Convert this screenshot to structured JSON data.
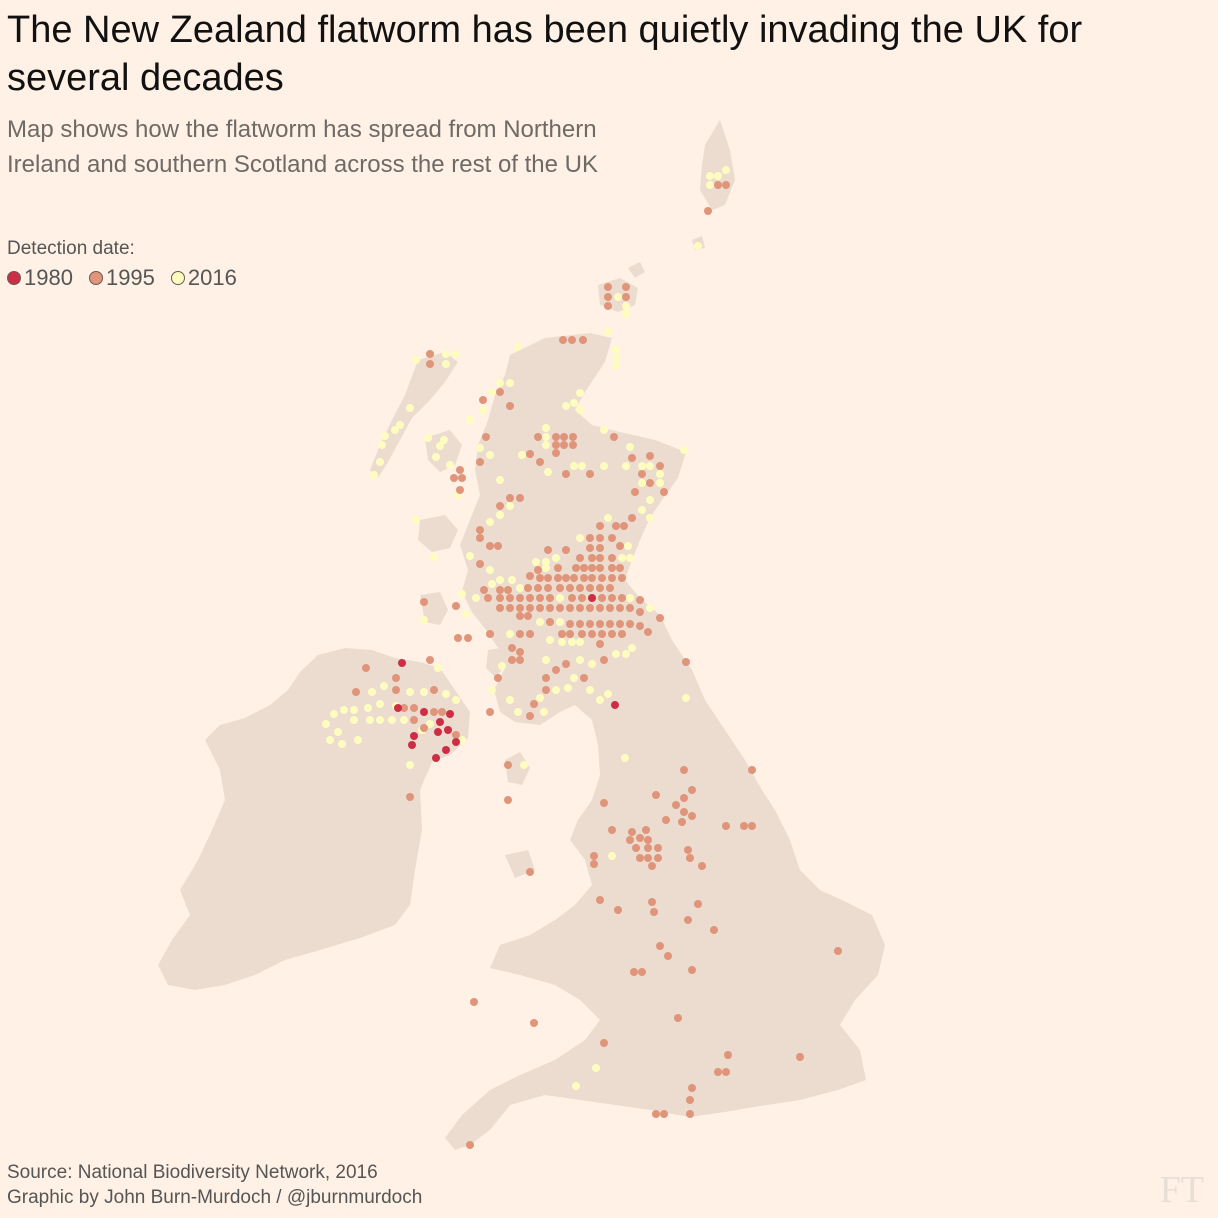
{
  "title": "The New Zealand flatworm has been quietly invading the UK for several decades",
  "subtitle": "Map shows how the flatworm has spread from Northern Ireland and southern Scotland across the rest of the UK",
  "legend": {
    "title": "Detection date:",
    "items": [
      {
        "label": "1980",
        "color": "#cc2f43"
      },
      {
        "label": "1995",
        "color": "#e0957a"
      },
      {
        "label": "2016",
        "color": "#fffcc0"
      }
    ]
  },
  "source_line": "Source: National Biodiversity Network, 2016",
  "credit_line": "Graphic by John Burn-Murdoch / @jburnmurdoch",
  "logo_text": "FT",
  "colors": {
    "background": "#fff1e5",
    "land": "#ebdccf",
    "dot_1980": "#cc2f43",
    "dot_1995": "#e0957a",
    "dot_2016": "#fffcc0"
  }
}
